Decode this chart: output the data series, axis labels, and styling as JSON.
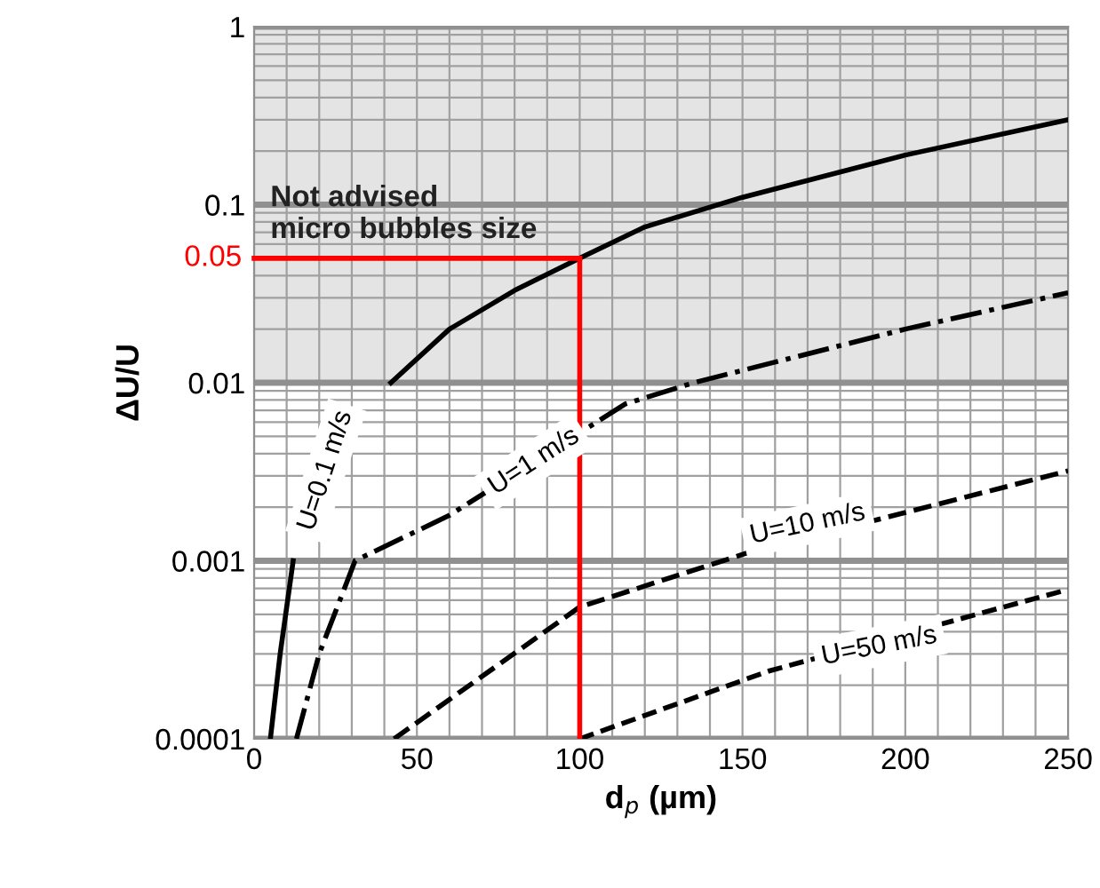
{
  "chart_data": {
    "type": "line",
    "xlabel": "d$_{p}$ (µm)",
    "ylabel": "ΔU/U",
    "log": "y",
    "grid": true,
    "xlim": [
      0,
      250
    ],
    "xticks": [
      0,
      50,
      100,
      150,
      200,
      250
    ],
    "ylim": [
      0.0001,
      1
    ],
    "yticks": [
      {
        "value": 0.0001,
        "label": "0.0001"
      },
      {
        "value": 0.001,
        "label": "0.001"
      },
      {
        "value": 0.01,
        "label": "0.01"
      },
      {
        "value": 0.1,
        "label": "0.1"
      },
      1
    ],
    "series": [
      {
        "name": "U=0.1 m/s",
        "color": "#000000",
        "line_style": "solid",
        "x": [
          5,
          8,
          12,
          20,
          30,
          42,
          60,
          80,
          100,
          120,
          150,
          200,
          250
        ],
        "values": [
          0.0001,
          0.0003,
          0.001,
          null,
          null,
          0.01,
          0.02,
          0.033,
          0.05,
          0.075,
          0.11,
          0.19,
          0.3
        ]
      },
      {
        "name": "U=1 m/s",
        "color": "#000000",
        "line_style": "dashdot",
        "x": [
          13,
          20,
          31,
          60,
          114,
          135,
          200,
          250
        ],
        "values": [
          0.0001,
          0.0003,
          0.001,
          0.0018,
          0.0076,
          0.01,
          0.02,
          0.032
        ]
      },
      {
        "name": "U=10 m/s",
        "color": "#000000",
        "line_style": "dashed",
        "x": [
          43,
          100,
          151,
          250
        ],
        "values": [
          0.0001,
          0.00055,
          0.0011,
          0.0032
        ]
      },
      {
        "name": "U=50 m/s",
        "color": "#000000",
        "line_style": "dashed",
        "x": [
          100,
          158,
          250
        ],
        "values": [
          0.0001,
          0.00024,
          0.00069
        ]
      }
    ],
    "bands": [
      {
        "axis": "y",
        "from": 0.01,
        "to": 1,
        "label": "Not advised\nmicro bubbles size",
        "color": "#e4e4e4"
      }
    ],
    "ref_lines": [
      {
        "axis": "y",
        "value": 0.05,
        "label": "0.05",
        "color": "#ff0000"
      },
      {
        "axis": "x",
        "value": 100,
        "color": "#ff0000"
      }
    ]
  }
}
